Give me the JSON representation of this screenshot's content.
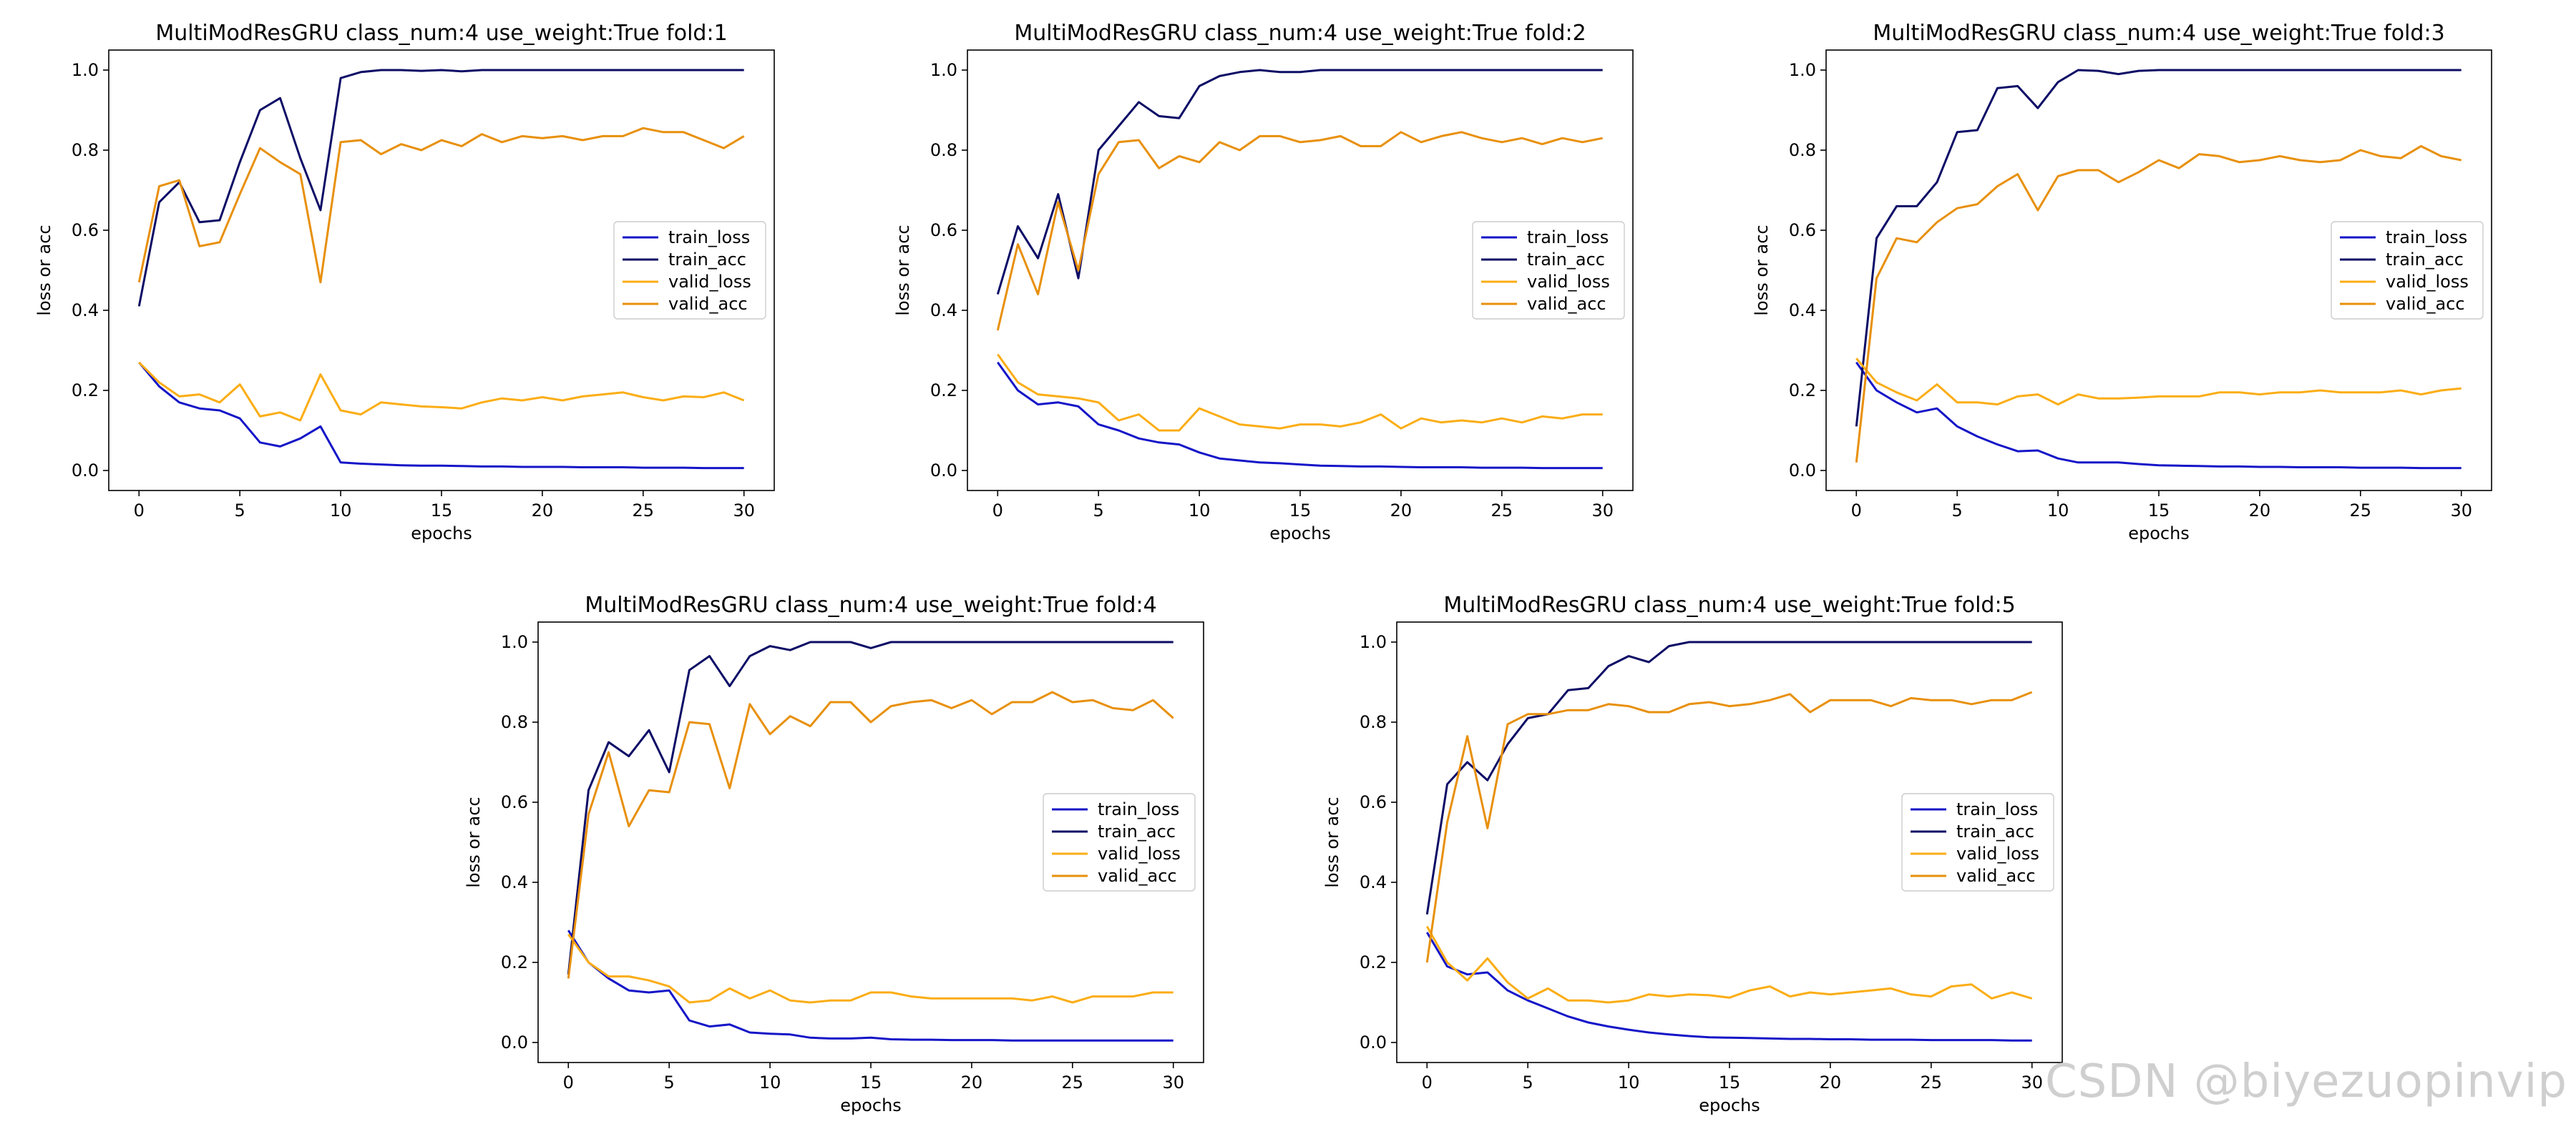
{
  "watermark": "CSDN @biyezuopinvip",
  "colors": {
    "train_loss": "#1515c8",
    "train_acc": "#0c0c66",
    "valid_loss": "#fbad15",
    "valid_acc": "#e8900c"
  },
  "chart_data": [
    {
      "type": "line",
      "title": "MultiModResGRU class_num:4 use_weight:True fold:1",
      "xlabel": "epochs",
      "ylabel": "loss or acc",
      "xlim": [
        0,
        30
      ],
      "ylim": [
        0,
        1
      ],
      "xticks": [
        "0",
        "5",
        "10",
        "15",
        "20",
        "25",
        "30"
      ],
      "yticks": [
        "0.0",
        "0.2",
        "0.4",
        "0.6",
        "0.8",
        "1.0"
      ],
      "legend_position": "center-right",
      "x": [
        0,
        1,
        2,
        3,
        4,
        5,
        6,
        7,
        8,
        9,
        10,
        11,
        12,
        13,
        14,
        15,
        16,
        17,
        18,
        19,
        20,
        21,
        22,
        23,
        24,
        25,
        26,
        27,
        28,
        29,
        30
      ],
      "series": [
        {
          "name": "train_loss",
          "color_key": "train_loss",
          "values": [
            0.27,
            0.21,
            0.17,
            0.155,
            0.15,
            0.13,
            0.07,
            0.06,
            0.08,
            0.11,
            0.02,
            0.017,
            0.015,
            0.013,
            0.012,
            0.012,
            0.011,
            0.01,
            0.01,
            0.009,
            0.009,
            0.009,
            0.008,
            0.008,
            0.008,
            0.007,
            0.007,
            0.007,
            0.006,
            0.006,
            0.006
          ]
        },
        {
          "name": "train_acc",
          "color_key": "train_acc",
          "values": [
            0.41,
            0.67,
            0.72,
            0.62,
            0.625,
            0.77,
            0.9,
            0.93,
            0.78,
            0.65,
            0.98,
            0.995,
            1.0,
            1.0,
            0.998,
            1.0,
            0.997,
            1.0,
            1.0,
            1.0,
            1.0,
            1.0,
            1.0,
            1.0,
            1.0,
            1.0,
            1.0,
            1.0,
            1.0,
            1.0,
            1.0
          ]
        },
        {
          "name": "valid_loss",
          "color_key": "valid_loss",
          "values": [
            0.27,
            0.22,
            0.185,
            0.19,
            0.17,
            0.215,
            0.135,
            0.145,
            0.125,
            0.24,
            0.15,
            0.14,
            0.17,
            0.165,
            0.16,
            0.158,
            0.155,
            0.17,
            0.18,
            0.175,
            0.183,
            0.175,
            0.185,
            0.19,
            0.195,
            0.183,
            0.175,
            0.185,
            0.183,
            0.195,
            0.175
          ]
        },
        {
          "name": "valid_acc",
          "color_key": "valid_acc",
          "values": [
            0.47,
            0.71,
            0.725,
            0.56,
            0.57,
            0.69,
            0.805,
            0.77,
            0.74,
            0.47,
            0.82,
            0.825,
            0.79,
            0.815,
            0.8,
            0.825,
            0.81,
            0.84,
            0.82,
            0.835,
            0.83,
            0.835,
            0.825,
            0.835,
            0.835,
            0.855,
            0.845,
            0.845,
            0.825,
            0.805,
            0.835
          ]
        }
      ]
    },
    {
      "type": "line",
      "title": "MultiModResGRU class_num:4 use_weight:True fold:2",
      "xlabel": "epochs",
      "ylabel": "loss or acc",
      "xlim": [
        0,
        30
      ],
      "ylim": [
        0,
        1
      ],
      "xticks": [
        "0",
        "5",
        "10",
        "15",
        "20",
        "25",
        "30"
      ],
      "yticks": [
        "0.0",
        "0.2",
        "0.4",
        "0.6",
        "0.8",
        "1.0"
      ],
      "legend_position": "center-right",
      "x": [
        0,
        1,
        2,
        3,
        4,
        5,
        6,
        7,
        8,
        9,
        10,
        11,
        12,
        13,
        14,
        15,
        16,
        17,
        18,
        19,
        20,
        21,
        22,
        23,
        24,
        25,
        26,
        27,
        28,
        29,
        30
      ],
      "series": [
        {
          "name": "train_loss",
          "color_key": "train_loss",
          "values": [
            0.27,
            0.2,
            0.165,
            0.17,
            0.16,
            0.115,
            0.1,
            0.08,
            0.07,
            0.065,
            0.045,
            0.03,
            0.025,
            0.02,
            0.018,
            0.015,
            0.012,
            0.011,
            0.01,
            0.01,
            0.009,
            0.008,
            0.008,
            0.008,
            0.007,
            0.007,
            0.007,
            0.006,
            0.006,
            0.006,
            0.006
          ]
        },
        {
          "name": "train_acc",
          "color_key": "train_acc",
          "values": [
            0.44,
            0.61,
            0.53,
            0.69,
            0.48,
            0.8,
            0.86,
            0.92,
            0.885,
            0.88,
            0.96,
            0.985,
            0.995,
            1.0,
            0.995,
            0.995,
            1.0,
            1.0,
            1.0,
            1.0,
            1.0,
            1.0,
            1.0,
            1.0,
            1.0,
            1.0,
            1.0,
            1.0,
            1.0,
            1.0,
            1.0
          ]
        },
        {
          "name": "valid_loss",
          "color_key": "valid_loss",
          "values": [
            0.29,
            0.22,
            0.19,
            0.185,
            0.18,
            0.17,
            0.125,
            0.14,
            0.1,
            0.1,
            0.155,
            0.135,
            0.115,
            0.11,
            0.105,
            0.115,
            0.115,
            0.11,
            0.12,
            0.14,
            0.105,
            0.13,
            0.12,
            0.125,
            0.12,
            0.13,
            0.12,
            0.135,
            0.13,
            0.14,
            0.14
          ]
        },
        {
          "name": "valid_acc",
          "color_key": "valid_acc",
          "values": [
            0.35,
            0.565,
            0.44,
            0.67,
            0.5,
            0.74,
            0.82,
            0.825,
            0.755,
            0.785,
            0.77,
            0.82,
            0.8,
            0.835,
            0.835,
            0.82,
            0.825,
            0.835,
            0.81,
            0.81,
            0.845,
            0.82,
            0.835,
            0.845,
            0.83,
            0.82,
            0.83,
            0.815,
            0.83,
            0.82,
            0.83
          ]
        }
      ]
    },
    {
      "type": "line",
      "title": "MultiModResGRU class_num:4 use_weight:True fold:3",
      "xlabel": "epochs",
      "ylabel": "loss or acc",
      "xlim": [
        0,
        30
      ],
      "ylim": [
        0,
        1
      ],
      "xticks": [
        "0",
        "5",
        "10",
        "15",
        "20",
        "25",
        "30"
      ],
      "yticks": [
        "0.0",
        "0.2",
        "0.4",
        "0.6",
        "0.8",
        "1.0"
      ],
      "legend_position": "center-right",
      "x": [
        0,
        1,
        2,
        3,
        4,
        5,
        6,
        7,
        8,
        9,
        10,
        11,
        12,
        13,
        14,
        15,
        16,
        17,
        18,
        19,
        20,
        21,
        22,
        23,
        24,
        25,
        26,
        27,
        28,
        29,
        30
      ],
      "series": [
        {
          "name": "train_loss",
          "color_key": "train_loss",
          "values": [
            0.27,
            0.2,
            0.17,
            0.145,
            0.155,
            0.11,
            0.085,
            0.065,
            0.048,
            0.05,
            0.03,
            0.02,
            0.02,
            0.02,
            0.016,
            0.013,
            0.012,
            0.011,
            0.01,
            0.01,
            0.009,
            0.009,
            0.008,
            0.008,
            0.008,
            0.007,
            0.007,
            0.007,
            0.006,
            0.006,
            0.006
          ]
        },
        {
          "name": "train_acc",
          "color_key": "train_acc",
          "values": [
            0.11,
            0.58,
            0.66,
            0.66,
            0.72,
            0.845,
            0.85,
            0.955,
            0.96,
            0.905,
            0.97,
            1.0,
            0.998,
            0.99,
            0.998,
            1.0,
            1.0,
            1.0,
            1.0,
            1.0,
            1.0,
            1.0,
            1.0,
            1.0,
            1.0,
            1.0,
            1.0,
            1.0,
            1.0,
            1.0,
            1.0
          ]
        },
        {
          "name": "valid_loss",
          "color_key": "valid_loss",
          "values": [
            0.28,
            0.22,
            0.195,
            0.175,
            0.215,
            0.17,
            0.17,
            0.165,
            0.185,
            0.19,
            0.165,
            0.19,
            0.18,
            0.18,
            0.182,
            0.185,
            0.185,
            0.185,
            0.195,
            0.195,
            0.19,
            0.195,
            0.195,
            0.2,
            0.195,
            0.195,
            0.195,
            0.2,
            0.19,
            0.2,
            0.205
          ]
        },
        {
          "name": "valid_acc",
          "color_key": "valid_acc",
          "values": [
            0.02,
            0.48,
            0.58,
            0.57,
            0.62,
            0.655,
            0.665,
            0.71,
            0.74,
            0.65,
            0.735,
            0.75,
            0.75,
            0.72,
            0.745,
            0.775,
            0.755,
            0.79,
            0.785,
            0.77,
            0.775,
            0.785,
            0.775,
            0.77,
            0.775,
            0.8,
            0.785,
            0.78,
            0.81,
            0.785,
            0.775
          ]
        }
      ]
    },
    {
      "type": "line",
      "title": "MultiModResGRU class_num:4 use_weight:True fold:4",
      "xlabel": "epochs",
      "ylabel": "loss or acc",
      "xlim": [
        0,
        30
      ],
      "ylim": [
        0,
        1
      ],
      "xticks": [
        "0",
        "5",
        "10",
        "15",
        "20",
        "25",
        "30"
      ],
      "yticks": [
        "0.0",
        "0.2",
        "0.4",
        "0.6",
        "0.8",
        "1.0"
      ],
      "legend_position": "center-right",
      "x": [
        0,
        1,
        2,
        3,
        4,
        5,
        6,
        7,
        8,
        9,
        10,
        11,
        12,
        13,
        14,
        15,
        16,
        17,
        18,
        19,
        20,
        21,
        22,
        23,
        24,
        25,
        26,
        27,
        28,
        29,
        30
      ],
      "series": [
        {
          "name": "train_loss",
          "color_key": "train_loss",
          "values": [
            0.28,
            0.2,
            0.16,
            0.13,
            0.125,
            0.13,
            0.055,
            0.04,
            0.045,
            0.025,
            0.022,
            0.02,
            0.012,
            0.01,
            0.01,
            0.012,
            0.008,
            0.007,
            0.007,
            0.006,
            0.006,
            0.006,
            0.005,
            0.005,
            0.005,
            0.005,
            0.005,
            0.005,
            0.005,
            0.005,
            0.005
          ]
        },
        {
          "name": "train_acc",
          "color_key": "train_acc",
          "values": [
            0.17,
            0.63,
            0.75,
            0.715,
            0.78,
            0.675,
            0.93,
            0.965,
            0.89,
            0.965,
            0.99,
            0.98,
            1.0,
            1.0,
            1.0,
            0.985,
            1.0,
            1.0,
            1.0,
            1.0,
            1.0,
            1.0,
            1.0,
            1.0,
            1.0,
            1.0,
            1.0,
            1.0,
            1.0,
            1.0,
            1.0
          ]
        },
        {
          "name": "valid_loss",
          "color_key": "valid_loss",
          "values": [
            0.27,
            0.2,
            0.165,
            0.165,
            0.155,
            0.14,
            0.1,
            0.105,
            0.135,
            0.11,
            0.13,
            0.105,
            0.1,
            0.105,
            0.105,
            0.125,
            0.125,
            0.115,
            0.11,
            0.11,
            0.11,
            0.11,
            0.11,
            0.105,
            0.115,
            0.1,
            0.115,
            0.115,
            0.115,
            0.125,
            0.125
          ]
        },
        {
          "name": "valid_acc",
          "color_key": "valid_acc",
          "values": [
            0.16,
            0.57,
            0.725,
            0.54,
            0.63,
            0.625,
            0.8,
            0.795,
            0.635,
            0.845,
            0.77,
            0.815,
            0.79,
            0.85,
            0.85,
            0.8,
            0.84,
            0.85,
            0.855,
            0.835,
            0.855,
            0.82,
            0.85,
            0.85,
            0.875,
            0.85,
            0.855,
            0.835,
            0.83,
            0.855,
            0.81
          ]
        }
      ]
    },
    {
      "type": "line",
      "title": "MultiModResGRU class_num:4 use_weight:True fold:5",
      "xlabel": "epochs",
      "ylabel": "loss or acc",
      "xlim": [
        0,
        30
      ],
      "ylim": [
        0,
        1
      ],
      "xticks": [
        "0",
        "5",
        "10",
        "15",
        "20",
        "25",
        "30"
      ],
      "yticks": [
        "0.0",
        "0.2",
        "0.4",
        "0.6",
        "0.8",
        "1.0"
      ],
      "legend_position": "center-right",
      "x": [
        0,
        1,
        2,
        3,
        4,
        5,
        6,
        7,
        8,
        9,
        10,
        11,
        12,
        13,
        14,
        15,
        16,
        17,
        18,
        19,
        20,
        21,
        22,
        23,
        24,
        25,
        26,
        27,
        28,
        29,
        30
      ],
      "series": [
        {
          "name": "train_loss",
          "color_key": "train_loss",
          "values": [
            0.275,
            0.19,
            0.17,
            0.175,
            0.13,
            0.105,
            0.085,
            0.065,
            0.05,
            0.04,
            0.032,
            0.025,
            0.02,
            0.016,
            0.013,
            0.012,
            0.011,
            0.01,
            0.009,
            0.009,
            0.008,
            0.008,
            0.007,
            0.007,
            0.007,
            0.006,
            0.006,
            0.006,
            0.006,
            0.005,
            0.005
          ]
        },
        {
          "name": "train_acc",
          "color_key": "train_acc",
          "values": [
            0.32,
            0.645,
            0.7,
            0.655,
            0.745,
            0.81,
            0.82,
            0.88,
            0.885,
            0.94,
            0.965,
            0.95,
            0.99,
            1.0,
            1.0,
            1.0,
            1.0,
            1.0,
            1.0,
            1.0,
            1.0,
            1.0,
            1.0,
            1.0,
            1.0,
            1.0,
            1.0,
            1.0,
            1.0,
            1.0,
            1.0
          ]
        },
        {
          "name": "valid_loss",
          "color_key": "valid_loss",
          "values": [
            0.29,
            0.2,
            0.155,
            0.21,
            0.15,
            0.11,
            0.135,
            0.105,
            0.105,
            0.1,
            0.105,
            0.12,
            0.115,
            0.12,
            0.118,
            0.112,
            0.13,
            0.14,
            0.115,
            0.125,
            0.12,
            0.125,
            0.13,
            0.135,
            0.12,
            0.115,
            0.14,
            0.145,
            0.11,
            0.125,
            0.11
          ]
        },
        {
          "name": "valid_acc",
          "color_key": "valid_acc",
          "values": [
            0.2,
            0.55,
            0.765,
            0.535,
            0.795,
            0.82,
            0.82,
            0.83,
            0.83,
            0.845,
            0.84,
            0.825,
            0.825,
            0.845,
            0.85,
            0.84,
            0.845,
            0.855,
            0.87,
            0.825,
            0.855,
            0.855,
            0.855,
            0.84,
            0.86,
            0.855,
            0.855,
            0.845,
            0.855,
            0.855,
            0.875
          ]
        }
      ]
    }
  ]
}
